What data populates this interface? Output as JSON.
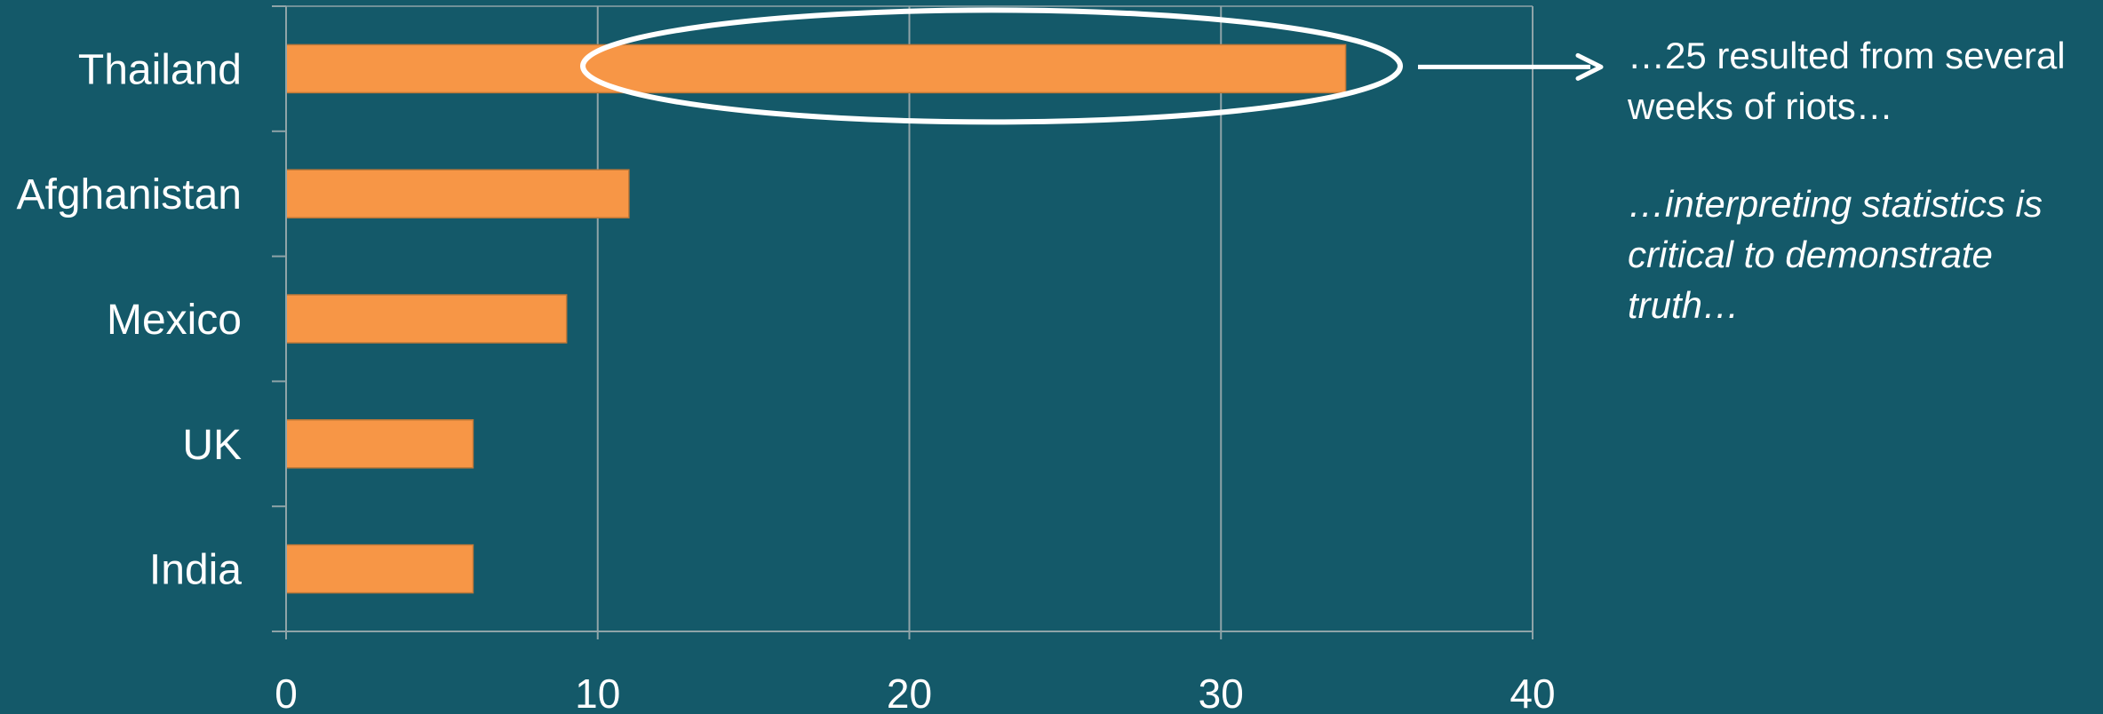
{
  "chart_data": {
    "type": "bar",
    "orientation": "horizontal",
    "categories": [
      "Thailand",
      "Afghanistan",
      "Mexico",
      "UK",
      "India"
    ],
    "values": [
      34,
      11,
      9,
      6,
      6
    ],
    "xlim": [
      0,
      40
    ],
    "xticks": [
      0,
      10,
      20,
      30,
      40
    ],
    "grid": "vertical",
    "highlight": "Thailand",
    "colors": {
      "background": "#145969",
      "bar": "#F79646",
      "bar_border": "#C07838",
      "grid": "#8FA4A8",
      "highlight_ellipse": "#FFFFFF",
      "text": "#FFFFFF"
    }
  },
  "annotation": {
    "note_1": "…25 resulted from several weeks of riots…",
    "note_2": "…interpreting statistics is critical to demonstrate truth…"
  }
}
